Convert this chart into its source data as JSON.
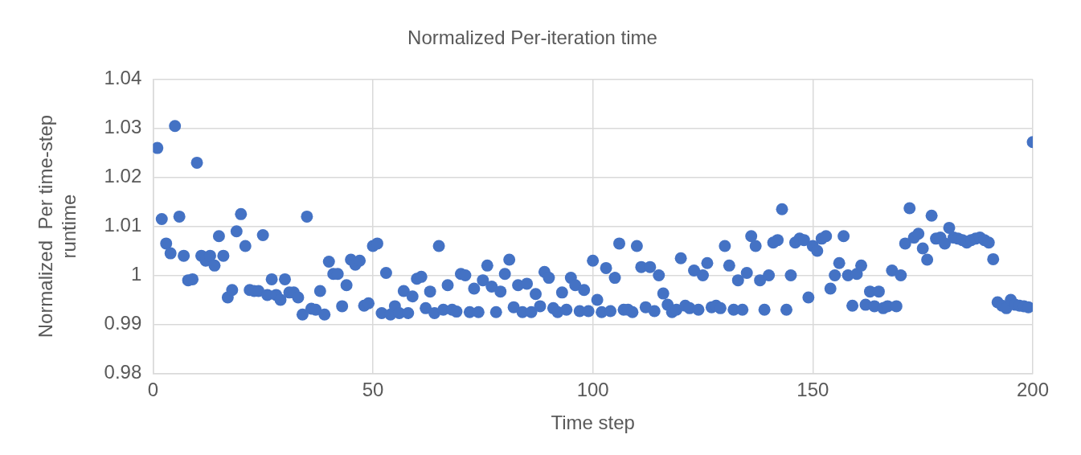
{
  "chart_data": {
    "type": "scatter",
    "title": "Normalized Per-iteration time",
    "xlabel": "Time step",
    "ylabel": "Normalized  Per time-step runtime",
    "xlim": [
      0,
      200
    ],
    "xticks": [
      0,
      50,
      100,
      150,
      200
    ],
    "ylim": [
      0.98,
      1.04
    ],
    "yticks": [
      0.98,
      0.99,
      1,
      1.01,
      1.02,
      1.03,
      1.04
    ],
    "grid": true,
    "legend": false,
    "marker": "circle",
    "series": [
      {
        "color": "#4472c4",
        "x": [
          1,
          2,
          3,
          4,
          5,
          6,
          7,
          8,
          9,
          10,
          11,
          12,
          13,
          14,
          15,
          16,
          17,
          18,
          19,
          20,
          21,
          22,
          23,
          24,
          25,
          26,
          27,
          28,
          29,
          30,
          31,
          32,
          33,
          34,
          35,
          36,
          37,
          38,
          39,
          40,
          41,
          42,
          43,
          44,
          45,
          46,
          47,
          48,
          49,
          50,
          51,
          52,
          53,
          54,
          55,
          56,
          57,
          58,
          59,
          60,
          61,
          62,
          63,
          64,
          65,
          66,
          67,
          68,
          69,
          70,
          71,
          72,
          73,
          74,
          75,
          76,
          77,
          78,
          79,
          80,
          81,
          82,
          83,
          84,
          85,
          86,
          87,
          88,
          89,
          90,
          91,
          92,
          93,
          94,
          95,
          96,
          97,
          98,
          99,
          100,
          101,
          102,
          103,
          104,
          105,
          106,
          107,
          108,
          109,
          110,
          111,
          112,
          113,
          114,
          115,
          116,
          117,
          118,
          119,
          120,
          121,
          122,
          123,
          124,
          125,
          126,
          127,
          128,
          129,
          130,
          131,
          132,
          133,
          134,
          135,
          136,
          137,
          138,
          139,
          140,
          141,
          142,
          143,
          144,
          145,
          146,
          147,
          148,
          149,
          150,
          151,
          152,
          153,
          154,
          155,
          156,
          157,
          158,
          159,
          160,
          161,
          162,
          163,
          164,
          165,
          166,
          167,
          168,
          169,
          170,
          171,
          172,
          173,
          174,
          175,
          176,
          177,
          178,
          179,
          180,
          181,
          182,
          183,
          184,
          185,
          186,
          187,
          188,
          189,
          190,
          191,
          192,
          193,
          194,
          195,
          196,
          197,
          198,
          199,
          200
        ],
        "values": [
          1.026,
          1.0115,
          1.0065,
          1.0045,
          1.0305,
          1.012,
          1.004,
          0.999,
          0.9992,
          1.023,
          1.004,
          1.003,
          1.004,
          1.002,
          1.008,
          1.004,
          0.9955,
          0.997,
          1.009,
          1.0125,
          1.006,
          0.997,
          0.9968,
          0.9968,
          1.0082,
          0.996,
          0.9992,
          0.996,
          0.995,
          0.9992,
          0.9965,
          0.9965,
          0.9955,
          0.992,
          1.012,
          0.9932,
          0.993,
          0.9968,
          0.992,
          1.0028,
          1.0003,
          1.0003,
          0.9937,
          0.998,
          1.0032,
          1.0022,
          1.003,
          0.9938,
          0.9943,
          1.006,
          1.0065,
          0.9923,
          1.0005,
          0.992,
          0.9937,
          0.9923,
          0.9968,
          0.9923,
          0.9957,
          0.9993,
          0.9997,
          0.9933,
          0.9967,
          0.9923,
          1.006,
          0.993,
          0.998,
          0.993,
          0.9926,
          1.0003,
          1.0,
          0.9925,
          0.9973,
          0.9925,
          0.999,
          1.002,
          0.9977,
          0.9925,
          0.9967,
          1.0003,
          1.0032,
          0.9935,
          0.998,
          0.9925,
          0.9983,
          0.9925,
          0.9962,
          0.9937,
          1.0007,
          0.9995,
          0.9933,
          0.9925,
          0.9965,
          0.993,
          0.9995,
          0.998,
          0.9927,
          0.997,
          0.9927,
          1.003,
          0.995,
          0.9925,
          1.0015,
          0.9927,
          0.9995,
          1.0065,
          0.993,
          0.993,
          0.9925,
          1.006,
          1.0017,
          0.9935,
          1.0017,
          0.9927,
          1.0,
          0.9963,
          0.994,
          0.9925,
          0.993,
          1.0035,
          0.9938,
          0.9933,
          1.001,
          0.993,
          1.0,
          1.0025,
          0.9935,
          0.9938,
          0.9933,
          1.006,
          1.002,
          0.993,
          0.999,
          0.993,
          1.0005,
          1.008,
          1.006,
          0.999,
          0.993,
          1.0,
          1.0067,
          1.0072,
          1.0135,
          0.993,
          1.0,
          1.0067,
          1.0075,
          1.0072,
          0.9955,
          1.006,
          1.005,
          1.0075,
          1.008,
          0.9973,
          1.0,
          1.0025,
          1.008,
          1.0,
          0.9938,
          1.0003,
          1.002,
          0.994,
          0.9967,
          0.9937,
          0.9967,
          0.9933,
          0.9937,
          1.001,
          0.9937,
          1.0,
          1.0065,
          1.0137,
          1.0077,
          1.0085,
          1.0055,
          1.0032,
          1.0122,
          1.0075,
          1.0077,
          1.0065,
          1.0097,
          1.0077,
          1.0075,
          1.0072,
          1.0067,
          1.0072,
          1.0075,
          1.0077,
          1.0072,
          1.0067,
          1.0033,
          0.9945,
          0.9938,
          0.9933,
          0.995,
          0.994,
          0.9938,
          0.9937,
          0.9935,
          1.0272
        ]
      }
    ]
  }
}
